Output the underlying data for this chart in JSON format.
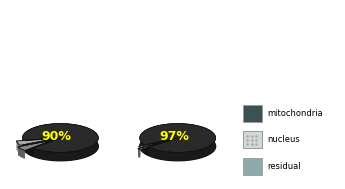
{
  "pie1_values": [
    90,
    5,
    5
  ],
  "pie2_values": [
    97,
    1.5,
    1.5
  ],
  "pie1_label": "90%",
  "pie2_label": "97%",
  "label_color": "#ffff00",
  "label_fontsize": 9,
  "mito_color": "#2a2a2a",
  "mito_side_color": "#1a1a1a",
  "nucleus_color": "#aaaaaa",
  "nucleus_side_color": "#888888",
  "residual_color": "#888888",
  "residual_side_color": "#606060",
  "legend_labels": [
    "mitochondria",
    "nucleus",
    "residual"
  ],
  "legend_colors": [
    "#3d5054",
    "#d0d8d8",
    "#8faaaa"
  ],
  "background_color": "#ffffff",
  "startangle1": 225,
  "startangle2": 220,
  "depth": 0.22,
  "yscale": 0.38
}
